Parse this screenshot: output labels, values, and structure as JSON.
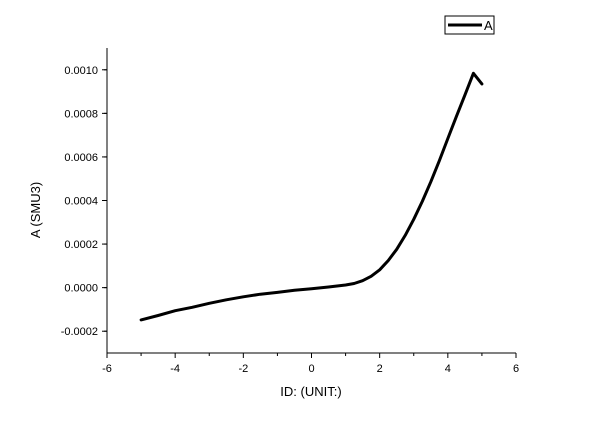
{
  "chart_data": {
    "type": "line",
    "title": "",
    "xlabel": "ID: (UNIT:)",
    "ylabel": "A (SMU3)",
    "xlim": [
      -6,
      6
    ],
    "ylim": [
      -0.0003,
      0.0011
    ],
    "x_ticks": [
      -6,
      -4,
      -2,
      0,
      2,
      4,
      6
    ],
    "x_tick_labels": [
      "-6",
      "-4",
      "-2",
      "0",
      "2",
      "4",
      "6"
    ],
    "y_ticks": [
      -0.0002,
      0.0,
      0.0002,
      0.0004,
      0.0006,
      0.0008,
      0.001
    ],
    "y_tick_labels": [
      "-0.0002",
      "0.0000",
      "0.0002",
      "0.0004",
      "0.0006",
      "0.0008",
      "0.0010"
    ],
    "grid": false,
    "legend_position": "top-right",
    "series": [
      {
        "name": "A",
        "color": "#000000",
        "x": [
          -5,
          -4.5,
          -4,
          -3.5,
          -3,
          -2.5,
          -2,
          -1.5,
          -1,
          -0.5,
          0,
          0.5,
          1,
          1.25,
          1.5,
          1.75,
          2,
          2.25,
          2.5,
          2.75,
          3,
          3.25,
          3.5,
          3.75,
          4,
          4.25,
          4.5,
          4.75,
          5
        ],
        "y": [
          -0.000148,
          -0.000128,
          -0.000106,
          -9e-05,
          -7.2e-05,
          -5.6e-05,
          -4.2e-05,
          -3e-05,
          -2.2e-05,
          -1.2e-05,
          -5e-06,
          3e-06,
          1.2e-05,
          1.9e-05,
          3.2e-05,
          5.2e-05,
          8.2e-05,
          0.000124,
          0.000176,
          0.00024,
          0.000314,
          0.000396,
          0.000486,
          0.000582,
          0.000684,
          0.000786,
          0.000884,
          0.000984,
          0.000935
        ]
      }
    ]
  }
}
